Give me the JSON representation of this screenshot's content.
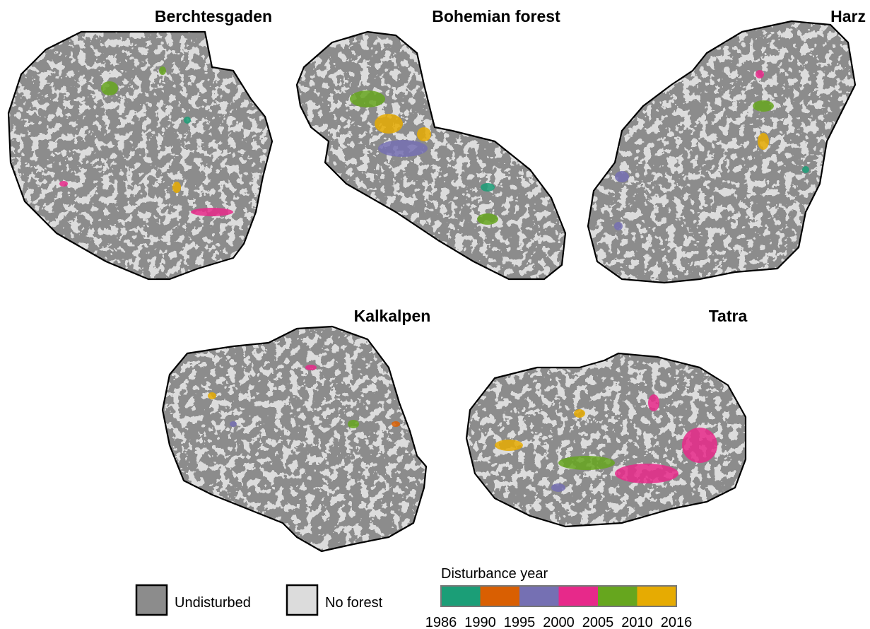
{
  "panels": [
    {
      "title": "Berchtesgaden"
    },
    {
      "title": "Bohemian forest"
    },
    {
      "title": "Harz"
    },
    {
      "title": "Kalkalpen"
    },
    {
      "title": "Tatra"
    }
  ],
  "legend": {
    "classes": [
      {
        "label": "Undisturbed",
        "color": "#8c8c8c"
      },
      {
        "label": "No forest",
        "color": "#dcdcdc"
      }
    ],
    "disturbance": {
      "title": "Disturbance year",
      "years": [
        1986,
        1990,
        1995,
        2000,
        2005,
        2010,
        2016
      ],
      "colors": [
        "#1b9e77",
        "#d95f02",
        "#7570b3",
        "#e7298a",
        "#66a61e",
        "#e6ab02"
      ]
    }
  }
}
